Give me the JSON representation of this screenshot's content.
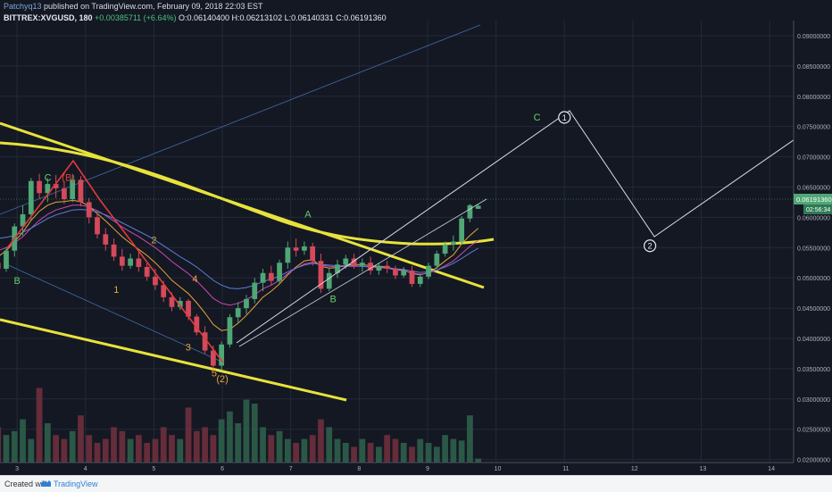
{
  "header": {
    "author": "Patchyq13",
    "published_text": "published on TradingView.com, February 09, 2018 22:03 EST",
    "symbol": "BITTREX:XVGUSD, 180",
    "change": "+0.00385711 (+6.64%)",
    "ohlc": "O:0.06140400 H:0.06213102 L:0.06140331 C:0.06191360"
  },
  "footer": {
    "created_with": "Created with",
    "brand": "TradingView"
  },
  "colors": {
    "background": "#141823",
    "grid": "#23293a",
    "bull": "#4fa776",
    "bear": "#d44a5b",
    "trendline": "#e8e23c",
    "wave_red": "#e03b3b",
    "projection": "#d7dbe3",
    "channel_blue": "#3f6da6",
    "label_green": "#62d16a",
    "label_orange": "#e8a53a"
  },
  "chart_data": {
    "type": "candlestick",
    "ylim": [
      0.0195,
      0.0925
    ],
    "xlim": [
      2.75,
      14.35
    ],
    "x_ticks": [
      3,
      4,
      5,
      6,
      7,
      8,
      9,
      10,
      11,
      12,
      13,
      14
    ],
    "y_ticks": [
      "0.09000000",
      "0.08500000",
      "0.08000000",
      "0.07500000",
      "0.07000000",
      "0.06500000",
      "0.06000000",
      "0.05500000",
      "0.05000000",
      "0.04500000",
      "0.04000000",
      "0.03500000",
      "0.03000000",
      "0.02500000",
      "0.02000000"
    ],
    "last_price_label": "0.06191360",
    "countdown_label": "02:56:34",
    "candles": [
      [
        0.0525,
        0.0545,
        0.0508,
        0.0515
      ],
      [
        0.0515,
        0.055,
        0.051,
        0.0545
      ],
      [
        0.0545,
        0.059,
        0.0535,
        0.0585
      ],
      [
        0.0585,
        0.062,
        0.057,
        0.0605
      ],
      [
        0.0605,
        0.0665,
        0.0595,
        0.066
      ],
      [
        0.066,
        0.0672,
        0.063,
        0.064
      ],
      [
        0.064,
        0.0665,
        0.0625,
        0.0655
      ],
      [
        0.0655,
        0.067,
        0.0632,
        0.0648
      ],
      [
        0.0648,
        0.066,
        0.0622,
        0.063
      ],
      [
        0.063,
        0.067,
        0.0625,
        0.0662
      ],
      [
        0.0662,
        0.0668,
        0.0618,
        0.0625
      ],
      [
        0.0625,
        0.0632,
        0.059,
        0.06
      ],
      [
        0.06,
        0.0605,
        0.0565,
        0.0572
      ],
      [
        0.0572,
        0.0582,
        0.0545,
        0.0555
      ],
      [
        0.0555,
        0.0565,
        0.0528,
        0.0535
      ],
      [
        0.0535,
        0.0548,
        0.0512,
        0.052
      ],
      [
        0.052,
        0.054,
        0.0515,
        0.0532
      ],
      [
        0.0532,
        0.0545,
        0.051,
        0.0518
      ],
      [
        0.0518,
        0.0524,
        0.0495,
        0.0502
      ],
      [
        0.0502,
        0.0515,
        0.048,
        0.0488
      ],
      [
        0.0488,
        0.0495,
        0.046,
        0.0468
      ],
      [
        0.0468,
        0.0476,
        0.0445,
        0.0452
      ],
      [
        0.0452,
        0.0468,
        0.0447,
        0.0462
      ],
      [
        0.0462,
        0.0465,
        0.043,
        0.0436
      ],
      [
        0.0436,
        0.044,
        0.0405,
        0.041
      ],
      [
        0.041,
        0.042,
        0.0375,
        0.038
      ],
      [
        0.038,
        0.0388,
        0.035,
        0.0355
      ],
      [
        0.0355,
        0.0395,
        0.0348,
        0.039
      ],
      [
        0.039,
        0.044,
        0.0385,
        0.0435
      ],
      [
        0.0435,
        0.046,
        0.0425,
        0.045
      ],
      [
        0.045,
        0.0472,
        0.044,
        0.0465
      ],
      [
        0.0465,
        0.05,
        0.0458,
        0.0492
      ],
      [
        0.0492,
        0.0515,
        0.0478,
        0.0508
      ],
      [
        0.0508,
        0.052,
        0.0488,
        0.0495
      ],
      [
        0.0495,
        0.053,
        0.049,
        0.0525
      ],
      [
        0.0525,
        0.056,
        0.0515,
        0.055
      ],
      [
        0.055,
        0.0565,
        0.0535,
        0.0545
      ],
      [
        0.0545,
        0.056,
        0.0538,
        0.0552
      ],
      [
        0.0552,
        0.0558,
        0.052,
        0.0528
      ],
      [
        0.0528,
        0.054,
        0.0475,
        0.0482
      ],
      [
        0.0482,
        0.0515,
        0.0478,
        0.0508
      ],
      [
        0.0508,
        0.053,
        0.05,
        0.0522
      ],
      [
        0.0522,
        0.0538,
        0.0515,
        0.0532
      ],
      [
        0.0532,
        0.054,
        0.0515,
        0.052
      ],
      [
        0.052,
        0.0532,
        0.051,
        0.0525
      ],
      [
        0.0525,
        0.0535,
        0.0505,
        0.0512
      ],
      [
        0.0512,
        0.0525,
        0.0505,
        0.052
      ],
      [
        0.052,
        0.0528,
        0.0508,
        0.0515
      ],
      [
        0.0515,
        0.052,
        0.0498,
        0.0504
      ],
      [
        0.0504,
        0.0518,
        0.05,
        0.0512
      ],
      [
        0.0512,
        0.052,
        0.0485,
        0.049
      ],
      [
        0.049,
        0.0506,
        0.0485,
        0.0502
      ],
      [
        0.0502,
        0.0525,
        0.0498,
        0.052
      ],
      [
        0.052,
        0.0545,
        0.0515,
        0.054
      ],
      [
        0.054,
        0.056,
        0.0535,
        0.0555
      ],
      [
        0.0555,
        0.057,
        0.0545,
        0.056
      ],
      [
        0.056,
        0.0602,
        0.0555,
        0.0598
      ],
      [
        0.0598,
        0.0622,
        0.0592,
        0.062
      ],
      [
        0.0614,
        0.0621,
        0.0614,
        0.0619
      ]
    ],
    "volume": [
      0.45,
      0.35,
      0.4,
      0.55,
      0.3,
      0.95,
      0.5,
      0.35,
      0.3,
      0.4,
      0.6,
      0.35,
      0.25,
      0.3,
      0.45,
      0.4,
      0.3,
      0.35,
      0.25,
      0.3,
      0.45,
      0.35,
      0.3,
      0.7,
      0.4,
      0.45,
      0.35,
      0.55,
      0.65,
      0.5,
      0.8,
      0.75,
      0.45,
      0.35,
      0.4,
      0.3,
      0.25,
      0.3,
      0.35,
      0.55,
      0.45,
      0.3,
      0.25,
      0.2,
      0.3,
      0.25,
      0.2,
      0.35,
      0.3,
      0.25,
      0.2,
      0.3,
      0.25,
      0.2,
      0.35,
      0.3,
      0.28,
      0.6,
      0.05
    ],
    "moving_averages": [
      {
        "color": "#e8a53a",
        "values": [
          0.0535,
          0.0545,
          0.056,
          0.0575,
          0.0595,
          0.061,
          0.062,
          0.0625,
          0.0626,
          0.0628,
          0.0626,
          0.0618,
          0.0606,
          0.0594,
          0.0581,
          0.0568,
          0.0557,
          0.0547,
          0.0537,
          0.0525,
          0.0511,
          0.0496,
          0.0485,
          0.0474,
          0.0459,
          0.0442,
          0.0423,
          0.0413,
          0.0415,
          0.0425,
          0.0438,
          0.0453,
          0.0468,
          0.0478,
          0.049,
          0.0505,
          0.0518,
          0.0528,
          0.053,
          0.0519,
          0.0516,
          0.0517,
          0.0521,
          0.0522,
          0.0522,
          0.052,
          0.0519,
          0.0518,
          0.0514,
          0.0513,
          0.0507,
          0.0505,
          0.0509,
          0.0517,
          0.0528,
          0.0538,
          0.0556,
          0.057,
          0.0582
        ]
      },
      {
        "color": "#c94ab1",
        "values": [
          0.0545,
          0.055,
          0.0558,
          0.0568,
          0.0582,
          0.0595,
          0.0605,
          0.0612,
          0.0616,
          0.062,
          0.062,
          0.0617,
          0.0611,
          0.0603,
          0.0594,
          0.0584,
          0.0576,
          0.0568,
          0.0559,
          0.055,
          0.0539,
          0.0527,
          0.0517,
          0.0507,
          0.0495,
          0.0481,
          0.0466,
          0.0458,
          0.0455,
          0.0458,
          0.0464,
          0.0472,
          0.0482,
          0.0488,
          0.0496,
          0.0507,
          0.0516,
          0.0523,
          0.0526,
          0.0521,
          0.0519,
          0.0518,
          0.0519,
          0.0519,
          0.0519,
          0.0518,
          0.0517,
          0.0516,
          0.0513,
          0.0512,
          0.0508,
          0.0506,
          0.0508,
          0.0513,
          0.052,
          0.0528,
          0.054,
          0.0552,
          0.0562
        ]
      },
      {
        "color": "#5b7fd8",
        "values": [
          0.0565,
          0.0567,
          0.057,
          0.0575,
          0.0582,
          0.059,
          0.0598,
          0.0604,
          0.0608,
          0.0612,
          0.0613,
          0.0612,
          0.0609,
          0.0604,
          0.0598,
          0.0591,
          0.0584,
          0.0577,
          0.057,
          0.0562,
          0.0553,
          0.0544,
          0.0535,
          0.0527,
          0.0518,
          0.0507,
          0.0496,
          0.0488,
          0.0483,
          0.0482,
          0.0484,
          0.0488,
          0.0494,
          0.0498,
          0.0503,
          0.051,
          0.0516,
          0.0521,
          0.0524,
          0.0522,
          0.0521,
          0.052,
          0.052,
          0.052,
          0.0519,
          0.0518,
          0.0518,
          0.0517,
          0.0515,
          0.0514,
          0.0511,
          0.0509,
          0.051,
          0.0513,
          0.0518,
          0.0524,
          0.0532,
          0.0541,
          0.0549
        ]
      }
    ],
    "annotations": [
      {
        "text": "C",
        "color": "#62d16a",
        "x": 3.45,
        "y": 0.066
      },
      {
        "text": "(B)",
        "color": "#e03b3b",
        "x": 3.75,
        "y": 0.066
      },
      {
        "text": "B",
        "color": "#62d16a",
        "x": 3.0,
        "y": 0.049
      },
      {
        "text": "2",
        "color": "#e8a53a",
        "x": 5.0,
        "y": 0.0557
      },
      {
        "text": "1",
        "color": "#e8a53a",
        "x": 4.45,
        "y": 0.0475
      },
      {
        "text": "4",
        "color": "#e8a53a",
        "x": 5.6,
        "y": 0.0493
      },
      {
        "text": "3",
        "color": "#e8a53a",
        "x": 5.5,
        "y": 0.038
      },
      {
        "text": "5",
        "color": "#e8a53a",
        "x": 5.88,
        "y": 0.0337
      },
      {
        "text": "(2)",
        "color": "#e8a53a",
        "x": 6.0,
        "y": 0.0328
      },
      {
        "text": "A",
        "color": "#62d16a",
        "x": 7.25,
        "y": 0.06
      },
      {
        "text": "B",
        "color": "#62d16a",
        "x": 7.62,
        "y": 0.046
      },
      {
        "text": "C",
        "color": "#62d16a",
        "x": 10.6,
        "y": 0.076
      }
    ],
    "circled_labels": [
      {
        "text": "1",
        "x": 11.0,
        "y": 0.0765
      },
      {
        "text": "2",
        "x": 12.25,
        "y": 0.0553
      }
    ]
  }
}
